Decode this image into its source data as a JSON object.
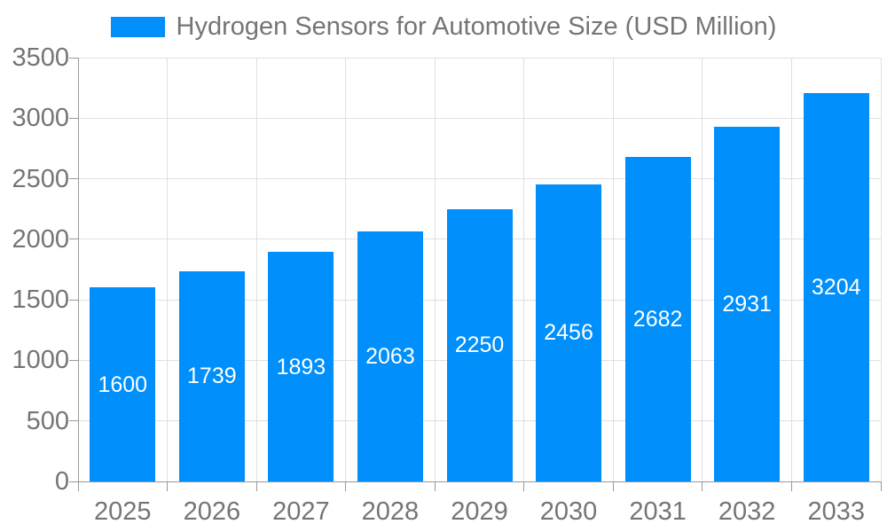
{
  "chart_data": {
    "type": "bar",
    "title": "Hydrogen Sensors for Automotive Size (USD Million)",
    "legend": [
      "Hydrogen Sensors for Automotive Size (USD Million)"
    ],
    "legend_position": "top-center",
    "categories": [
      "2025",
      "2026",
      "2027",
      "2028",
      "2029",
      "2030",
      "2031",
      "2032",
      "2033"
    ],
    "values": [
      1600,
      1739,
      1893,
      2063,
      2250,
      2456,
      2682,
      2931,
      3204
    ],
    "xlabel": "",
    "ylabel": "",
    "ylim": [
      0,
      3500
    ],
    "yticks": [
      0,
      500,
      1000,
      1500,
      2000,
      2500,
      3000,
      3500
    ],
    "grid": true,
    "value_labels": "inside-center-white",
    "colors": {
      "bar": "#008FFB",
      "grid": "#E0E0E0",
      "axis": "#999999",
      "tick_text": "#757575",
      "value_label": "#FFFFFF",
      "background": "#FFFFFF"
    }
  }
}
